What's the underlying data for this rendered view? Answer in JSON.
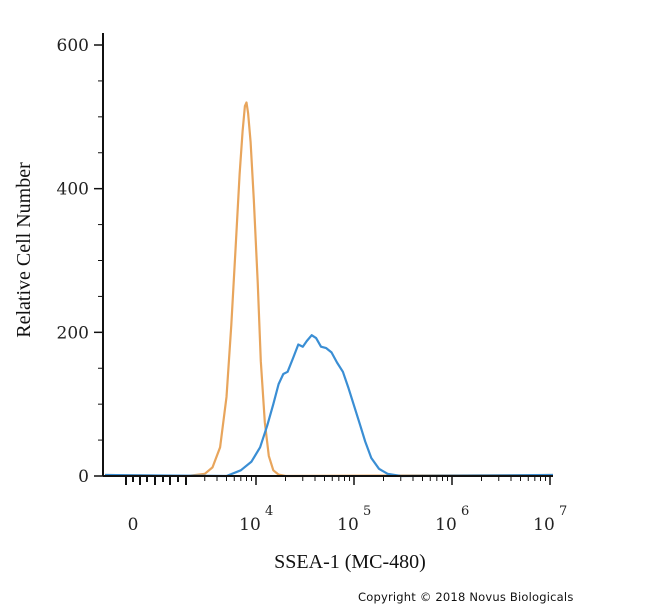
{
  "chart_data": {
    "type": "area",
    "title": "",
    "xlabel": "SSEA-1 (MC-480)",
    "ylabel": "Relative Cell Number",
    "x_scale": "log",
    "xlim": [
      0.5,
      10000000
    ],
    "ylim": [
      0,
      600
    ],
    "x_ticks": [
      {
        "value": 1,
        "base": "0",
        "exponent": ""
      },
      {
        "value": 10000,
        "base": "10",
        "exponent": "4"
      },
      {
        "value": 100000,
        "base": "10",
        "exponent": "5"
      },
      {
        "value": 1000000,
        "base": "10",
        "exponent": "6"
      },
      {
        "value": 10000000,
        "base": "10",
        "exponent": "7"
      }
    ],
    "y_ticks": [
      {
        "value": 0,
        "label": "0"
      },
      {
        "value": 200,
        "label": "200"
      },
      {
        "value": 400,
        "label": "400"
      },
      {
        "value": 600,
        "label": "600"
      }
    ],
    "grid": false,
    "legend": "none",
    "series": [
      {
        "color": "#e8a55c",
        "points": [
          [
            2000,
            0
          ],
          [
            3000,
            3
          ],
          [
            3600,
            12
          ],
          [
            4300,
            40
          ],
          [
            5000,
            110
          ],
          [
            5600,
            210
          ],
          [
            6200,
            320
          ],
          [
            6800,
            420
          ],
          [
            7300,
            480
          ],
          [
            7700,
            515
          ],
          [
            8000,
            520
          ],
          [
            8300,
            505
          ],
          [
            8800,
            465
          ],
          [
            9500,
            385
          ],
          [
            10400,
            270
          ],
          [
            11200,
            160
          ],
          [
            12300,
            75
          ],
          [
            13500,
            28
          ],
          [
            15000,
            8
          ],
          [
            17000,
            2
          ],
          [
            20000,
            0
          ]
        ]
      },
      {
        "color": "#3a8ed4",
        "points": [
          [
            5000,
            0
          ],
          [
            7000,
            8
          ],
          [
            9000,
            20
          ],
          [
            11000,
            40
          ],
          [
            13000,
            70
          ],
          [
            15000,
            100
          ],
          [
            17000,
            128
          ],
          [
            19000,
            142
          ],
          [
            21000,
            145
          ],
          [
            24000,
            165
          ],
          [
            27000,
            183
          ],
          [
            30000,
            180
          ],
          [
            33000,
            188
          ],
          [
            37000,
            196
          ],
          [
            41000,
            192
          ],
          [
            46000,
            180
          ],
          [
            52000,
            178
          ],
          [
            59000,
            172
          ],
          [
            67000,
            158
          ],
          [
            77000,
            145
          ],
          [
            88000,
            122
          ],
          [
            100000,
            98
          ],
          [
            115000,
            72
          ],
          [
            130000,
            48
          ],
          [
            150000,
            25
          ],
          [
            180000,
            10
          ],
          [
            220000,
            3
          ],
          [
            300000,
            0
          ]
        ]
      }
    ]
  },
  "copyright": "Copyright © 2018 Novus Biologicals"
}
